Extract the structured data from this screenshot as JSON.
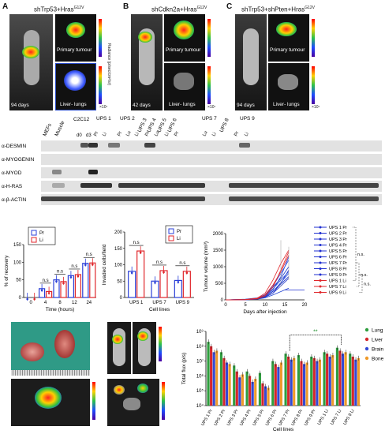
{
  "figure": {
    "panels": {
      "A": {
        "letter": "A",
        "genotype": "shTrp53+Hras",
        "sup": "G12V",
        "primary": "Primary tumour",
        "liver": "Liver- lungs",
        "days": "94 days",
        "radiance": "Radiance (p/sec/cm²/sr)",
        "scale_top": [
          "1.5",
          "1.0",
          "0.5"
        ],
        "scale_bottom": [
          "1.4",
          "1.2",
          "1.0",
          "0.8",
          "0.6",
          "0.4",
          "0.2"
        ],
        "exp": "×10⁷"
      },
      "B": {
        "letter": "B",
        "genotype": "shCdkn2a+Hras",
        "sup": "G12V",
        "primary": "Primary tumour",
        "liver": "Liver- lungs",
        "days": "42 days",
        "radiance": "Radiance (p/sec/cm²/sr)",
        "scale_top": [
          "2.0",
          "1.5",
          "1.0",
          "0.5"
        ],
        "scale_bottom": [
          "1.6",
          "1.4",
          "1.2",
          "1.0",
          "0.8",
          "0.6",
          "0.4",
          "0.2"
        ],
        "exp": "×10⁷"
      },
      "C": {
        "letter": "C",
        "genotype": "shTrp53+shPten+Hras",
        "sup": "G12V",
        "primary": "Primary tumour",
        "liver": "Liver- lungs",
        "days": "94 days",
        "radiance": "Radiance (p/sec/cm²/sr)",
        "scale_top": [
          "1.5",
          "1.0",
          "0.5"
        ],
        "scale_bottom": [
          "1.2",
          "1.0",
          "0.8",
          "0.6",
          "0.4",
          "0.2"
        ],
        "exp": "×10⁷"
      }
    },
    "D": {
      "letter": "D",
      "groups": [
        "MEFs",
        "Muscle",
        "C2C12",
        "UPS 1",
        "UPS 2",
        "UPS 3",
        "UPS 4",
        "UPS 5",
        "UPS 6",
        "UPS 7",
        "UPS 8",
        "UPS 9"
      ],
      "sublanes": [
        "d0",
        "d3",
        "Pr",
        "Li",
        "Pr",
        "Lu",
        "Li",
        "Pr",
        "Lu",
        "Li",
        "Pr",
        "Lu",
        "Li",
        "Pr",
        "Li"
      ],
      "antibodies": [
        "α-DESMIN",
        "α-MYOGENIN",
        "α-MYOD",
        "α-H-RAS",
        "α-β-ACTIN"
      ]
    },
    "E": {
      "letter": "E",
      "ylabel": "% of recovery",
      "xlabel": "Time (hours)",
      "legend": [
        "Pr",
        "Li"
      ],
      "ns": "n.s",
      "ticks_y": [
        "0",
        "50",
        "100",
        "150"
      ]
    },
    "F": {
      "letter": "F",
      "ylabel": "Invaded cells/field",
      "xlabel": "Cell lines",
      "legend": [
        "Pr",
        "Li"
      ],
      "ns": "n.s",
      "ticks_y": [
        "0",
        "50",
        "100",
        "150",
        "200"
      ]
    },
    "G": {
      "letter": "G",
      "ylabel": "Tumour volume (mm³)",
      "xlabel": "Days after injection",
      "ns": "n.s.",
      "ticks_y": [
        "0",
        "500",
        "1000",
        "1500",
        "2000"
      ],
      "ticks_x": [
        "0",
        "5",
        "10",
        "15",
        "20"
      ],
      "legend": [
        "UPS 1 Pr",
        "UPS 2 Pr",
        "UPS 3 Pr",
        "UPS 4 Pr",
        "UPS 5 Pr",
        "UPS 6 Pr",
        "UPS 7 Pr",
        "UPS 8 Pr",
        "UPS 9 Pr",
        "UPS 1 Li",
        "UPS 7 Li",
        "UPS 9 Li"
      ]
    },
    "H": {
      "letter": "H",
      "dorsal": "Dorsal view",
      "ventral": "Ventral view",
      "primary": "Primary tumour",
      "distal": "Distal organs",
      "radiance": "Radiance (p/sec/cm²/sr)"
    },
    "I": {
      "letter": "I",
      "ylabel": "Total flux (p/s)",
      "xlabel": "Cell lines",
      "sig": "**",
      "legend": [
        "Lung",
        "Liver",
        "Brain",
        "Bone"
      ],
      "ticks_y": [
        "10⁴",
        "10⁵",
        "10⁶",
        "10⁷",
        "10⁸",
        "10⁹"
      ],
      "categories": [
        "UPS 1 Pr",
        "UPS 2 Pr",
        "UPS 3 Pr",
        "UPS 4 Pr",
        "UPS 5 Pr",
        "UPS 6 Pr",
        "UPS 7 Pr",
        "UPS 8 Pr",
        "UPS 9 Pr",
        "UPS 1 Li",
        "UPS 7 Li",
        "UPS 9 Li"
      ]
    }
  },
  "chart_data": [
    {
      "panel": "E",
      "type": "bar",
      "categories": [
        "0",
        "4",
        "8",
        "12",
        "24"
      ],
      "ylabel": "% of recovery",
      "xlabel": "Time (hours)",
      "ylim": [
        0,
        150
      ],
      "series": [
        {
          "name": "Pr",
          "color": "#2a3fd8",
          "values": [
            0,
            25,
            50,
            62,
            97
          ]
        },
        {
          "name": "Li",
          "color": "#e0262b",
          "values": [
            0,
            17,
            45,
            65,
            98
          ]
        }
      ]
    },
    {
      "panel": "F",
      "type": "bar",
      "categories": [
        "UPS 1",
        "UPS 7",
        "UPS 9"
      ],
      "ylabel": "Invaded cells/field",
      "xlabel": "Cell lines",
      "ylim": [
        0,
        200
      ],
      "series": [
        {
          "name": "Pr",
          "color": "#2a3fd8",
          "values": [
            80,
            50,
            52
          ]
        },
        {
          "name": "Li",
          "color": "#e0262b",
          "values": [
            142,
            82,
            80
          ]
        }
      ]
    },
    {
      "panel": "G",
      "type": "line",
      "x": [
        0,
        5,
        8,
        10,
        12,
        14,
        16,
        20
      ],
      "ylabel": "Tumour volume (mm³)",
      "xlabel": "Days after injection",
      "ylim": [
        0,
        2000
      ],
      "xlim": [
        0,
        20
      ]
    },
    {
      "panel": "I",
      "type": "bar",
      "ylabel": "Total flux (p/s)",
      "xlabel": "Cell lines",
      "scale": "log",
      "ylim": [
        4,
        9
      ],
      "categories": [
        "UPS 1 Pr",
        "UPS 2 Pr",
        "UPS 3 Pr",
        "UPS 4 Pr",
        "UPS 5 Pr",
        "UPS 6 Pr",
        "UPS 7 Pr",
        "UPS 8 Pr",
        "UPS 9 Pr",
        "UPS 1 Li",
        "UPS 7 Li",
        "UPS 9 Li"
      ],
      "series": [
        {
          "name": "Lung",
          "color": "#2e9e3e",
          "values": [
            8.3,
            7.6,
            6.7,
            6.3,
            6.2,
            7.0,
            7.5,
            7.4,
            7.3,
            7.6,
            7.9,
            7.5
          ]
        },
        {
          "name": "Liver",
          "color": "#d5262b",
          "values": [
            8.0,
            7.2,
            6.3,
            6.0,
            5.5,
            6.8,
            7.3,
            7.0,
            7.2,
            7.5,
            7.7,
            7.3
          ]
        },
        {
          "name": "Brain",
          "color": "#3349d4",
          "values": [
            7.6,
            6.9,
            5.9,
            5.6,
            5.3,
            6.6,
            7.1,
            6.8,
            7.0,
            7.3,
            7.5,
            7.1
          ]
        },
        {
          "name": "Bone",
          "color": "#ef9a2a",
          "values": [
            7.7,
            6.8,
            6.1,
            5.8,
            5.2,
            6.9,
            7.2,
            6.9,
            7.1,
            7.4,
            7.6,
            7.2
          ]
        }
      ]
    }
  ]
}
